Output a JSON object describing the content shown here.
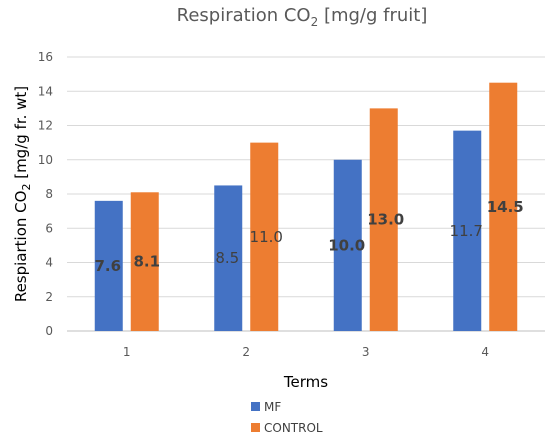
{
  "chart_data": {
    "type": "bar",
    "title": "Respiration CO",
    "title_sub": "2",
    "title_suffix": " [mg/g fruit]",
    "ylabel_prefix": "Respiartion CO",
    "ylabel_sub": "2",
    "ylabel_suffix": " [mg/g fr. wt]",
    "xlabel": "Terms",
    "categories": [
      "1",
      "2",
      "3",
      "4"
    ],
    "ylim": [
      0,
      16
    ],
    "yticks": [
      0,
      2,
      4,
      6,
      8,
      10,
      12,
      14,
      16
    ],
    "grid": true,
    "legend_position": "bottom",
    "series": [
      {
        "name": "MF",
        "color": "#4472C4",
        "values": [
          7.6,
          8.5,
          10.0,
          11.7
        ],
        "labels": [
          "7.6",
          "8.5",
          "10.0",
          "11.7"
        ],
        "label_bold": [
          true,
          false,
          true,
          false
        ]
      },
      {
        "name": "CONTROL",
        "color": "#ED7D31",
        "values": [
          8.1,
          11.0,
          13.0,
          14.5
        ],
        "labels": [
          "8.1",
          "11.0",
          "13.0",
          "14.5"
        ],
        "label_bold": [
          true,
          false,
          true,
          true
        ]
      }
    ]
  }
}
